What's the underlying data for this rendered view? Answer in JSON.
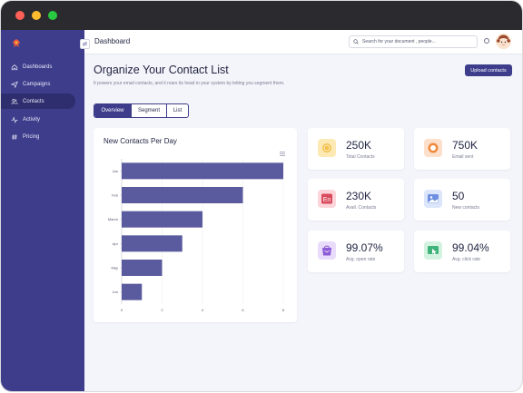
{
  "sidebar": {
    "logo": "logo-icon",
    "items": [
      {
        "label": "Dashboards",
        "icon": "home-icon"
      },
      {
        "label": "Campaigns",
        "icon": "send-icon"
      },
      {
        "label": "Contacts",
        "icon": "users-icon",
        "active": true
      },
      {
        "label": "Activity",
        "icon": "activity-icon"
      },
      {
        "label": "Pricing",
        "icon": "hash-icon"
      }
    ]
  },
  "header": {
    "title": "Dashboard",
    "search_placeholder": "Search for your document , people..."
  },
  "page": {
    "title": "Organize Your Contact List",
    "subtitle": "It powers your email contacts, and it rears its head in your system by letting you segment them.",
    "upload_label": "Upload contacts"
  },
  "tabs": [
    {
      "label": "Overview",
      "active": true
    },
    {
      "label": "Segment"
    },
    {
      "label": "List"
    }
  ],
  "chart": {
    "title": "New Contacts Per Day"
  },
  "chart_data": {
    "type": "bar",
    "orientation": "horizontal",
    "title": "New Contacts Per Day",
    "categories": [
      "Jan",
      "Feb",
      "March",
      "Apr",
      "May",
      "Jun"
    ],
    "values": [
      8,
      6,
      4,
      3,
      2,
      1
    ],
    "xlim": [
      0,
      8
    ],
    "xticks": [
      0,
      2,
      4,
      6,
      8
    ],
    "color": "#5a5a9e"
  },
  "stats": [
    {
      "value": "250K",
      "label": "Total Contacts",
      "icon": "coins-icon",
      "bg": "#fde9b3",
      "fg": "#f2c14e"
    },
    {
      "value": "750K",
      "label": "Email sent",
      "icon": "target-icon",
      "bg": "#fde0cc",
      "fg": "#ef8a3c"
    },
    {
      "value": "230K",
      "label": "Avail. Contacts",
      "icon": "contact-card-icon",
      "bg": "#fbd5da",
      "fg": "#d94b5c"
    },
    {
      "value": "50",
      "label": "New contacts",
      "icon": "image-icon",
      "bg": "#dce6fb",
      "fg": "#6f8fe0"
    },
    {
      "value": "99.07%",
      "label": "Avg. open rate",
      "icon": "mail-bag-icon",
      "bg": "#e9dcfb",
      "fg": "#8b5cd6"
    },
    {
      "value": "99.04%",
      "label": "Avg. click rate",
      "icon": "cursor-screen-icon",
      "bg": "#d4f2e0",
      "fg": "#3fb37a"
    }
  ]
}
